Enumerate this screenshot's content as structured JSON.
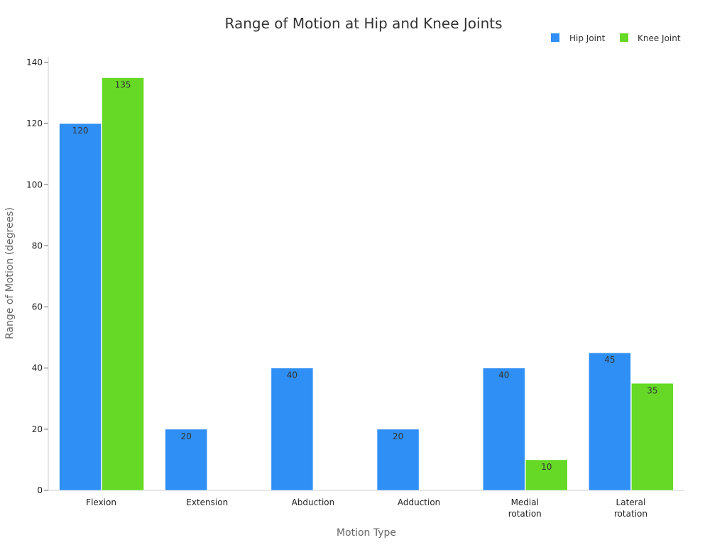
{
  "chart_data": {
    "type": "bar",
    "title": "Range of Motion at Hip and Knee Joints",
    "xlabel": "Motion Type",
    "ylabel": "Range of Motion (degrees)",
    "categories": [
      [
        "Flexion"
      ],
      [
        "Extension"
      ],
      [
        "Abduction"
      ],
      [
        "Adduction"
      ],
      [
        "Medial",
        "rotation"
      ],
      [
        "Lateral",
        "rotation"
      ]
    ],
    "series": [
      {
        "name": "Hip Joint",
        "color": "#2f8ff5",
        "values": [
          120,
          20,
          40,
          20,
          40,
          45
        ]
      },
      {
        "name": "Knee Joint",
        "color": "#66d926",
        "values": [
          135,
          null,
          null,
          null,
          10,
          35
        ]
      }
    ],
    "ylim": [
      0,
      140
    ],
    "yticks": [
      0,
      20,
      40,
      60,
      80,
      100,
      120,
      140
    ],
    "legend_position": "top-right",
    "grid": false
  }
}
